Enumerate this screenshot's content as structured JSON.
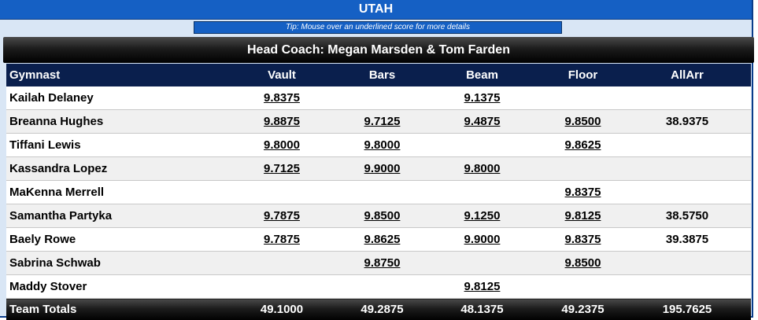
{
  "team": "UTAH",
  "tip": "Tip: Mouse over an underlined score for more details",
  "coach": "Head Coach: Megan Marsden & Tom Farden",
  "headers": {
    "gymnast": "Gymnast",
    "vault": "Vault",
    "bars": "Bars",
    "beam": "Beam",
    "floor": "Floor",
    "allarr": "AllArr"
  },
  "rows": [
    {
      "name": "Kailah Delaney",
      "vault": "9.8375",
      "bars": "",
      "beam": "9.1375",
      "floor": "",
      "aa": ""
    },
    {
      "name": "Breanna Hughes",
      "vault": "9.8875",
      "bars": "9.7125",
      "beam": "9.4875",
      "floor": "9.8500",
      "aa": "38.9375"
    },
    {
      "name": "Tiffani Lewis",
      "vault": "9.8000",
      "bars": "9.8000",
      "beam": "",
      "floor": "9.8625",
      "aa": ""
    },
    {
      "name": "Kassandra Lopez",
      "vault": "9.7125",
      "bars": "9.9000",
      "beam": "9.8000",
      "floor": "",
      "aa": ""
    },
    {
      "name": "MaKenna Merrell",
      "vault": "",
      "bars": "",
      "beam": "",
      "floor": "9.8375",
      "aa": ""
    },
    {
      "name": "Samantha Partyka",
      "vault": "9.7875",
      "bars": "9.8500",
      "beam": "9.1250",
      "floor": "9.8125",
      "aa": "38.5750"
    },
    {
      "name": "Baely Rowe",
      "vault": "9.7875",
      "bars": "9.8625",
      "beam": "9.9000",
      "floor": "9.8375",
      "aa": "39.3875"
    },
    {
      "name": "Sabrina Schwab",
      "vault": "",
      "bars": "9.8750",
      "beam": "",
      "floor": "9.8500",
      "aa": ""
    },
    {
      "name": "Maddy Stover",
      "vault": "",
      "bars": "",
      "beam": "9.8125",
      "floor": "",
      "aa": ""
    }
  ],
  "totals": {
    "label": "Team Totals",
    "vault": "49.1000",
    "bars": "49.2875",
    "beam": "48.1375",
    "floor": "49.2375",
    "aa": "195.7625"
  },
  "colors": {
    "team_bar": "#1560c4",
    "header_row": "#0a1f4d",
    "frame": "#d9e6f5"
  }
}
